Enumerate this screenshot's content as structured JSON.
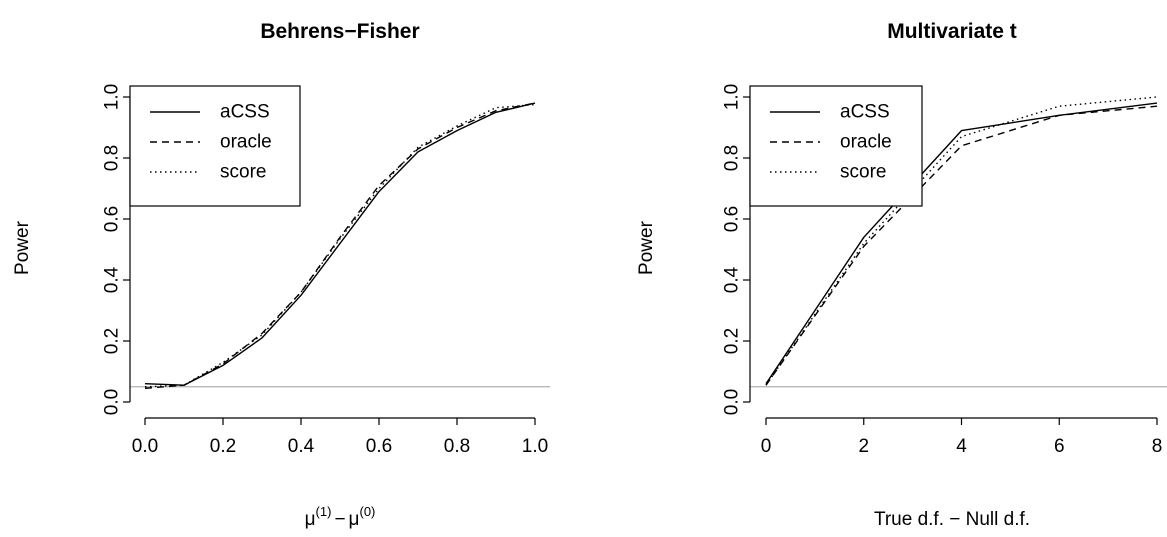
{
  "colors": {
    "series": "#000000",
    "reference": "#b0b0b0",
    "background": "#ffffff"
  },
  "chart_data": [
    {
      "type": "line",
      "title": "Behrens−Fisher",
      "xlabel": "μ⁽¹⁾ − μ⁽⁰⁾",
      "xlabel_parts": {
        "sym": "μ",
        "sup1": "(1)",
        "minus": "−",
        "sup0": "(0)"
      },
      "ylabel": "Power",
      "xlim": [
        0,
        1
      ],
      "ylim": [
        0,
        1
      ],
      "xticks": [
        0,
        0.2,
        0.4,
        0.6,
        0.8,
        1
      ],
      "xtick_labels": [
        "0.0",
        "0.2",
        "0.4",
        "0.6",
        "0.8",
        "1.0"
      ],
      "yticks": [
        0,
        0.2,
        0.4,
        0.6,
        0.8,
        1
      ],
      "ytick_labels": [
        "0.0",
        "0.2",
        "0.4",
        "0.6",
        "0.8",
        "1.0"
      ],
      "reference_line": {
        "y": 0.05
      },
      "legend": {
        "position": "top-left",
        "entries": [
          "aCSS",
          "oracle",
          "score"
        ]
      },
      "x": [
        0,
        0.1,
        0.2,
        0.3,
        0.4,
        0.5,
        0.6,
        0.7,
        0.8,
        0.9,
        1.0
      ],
      "series": [
        {
          "name": "aCSS",
          "style": "solid",
          "values": [
            0.06,
            0.055,
            0.12,
            0.21,
            0.35,
            0.52,
            0.69,
            0.82,
            0.89,
            0.95,
            0.98
          ]
        },
        {
          "name": "oracle",
          "style": "dashed",
          "values": [
            0.045,
            0.055,
            0.125,
            0.225,
            0.36,
            0.54,
            0.71,
            0.83,
            0.9,
            0.955,
            0.98
          ]
        },
        {
          "name": "score",
          "style": "dotted",
          "values": [
            0.05,
            0.055,
            0.13,
            0.22,
            0.36,
            0.535,
            0.7,
            0.835,
            0.905,
            0.965,
            0.975
          ]
        }
      ]
    },
    {
      "type": "line",
      "title": "Multivariate t",
      "xlabel": "True d.f. − Null d.f.",
      "ylabel": "Power",
      "xlim": [
        0,
        8
      ],
      "ylim": [
        0,
        1
      ],
      "xticks": [
        0,
        2,
        4,
        6,
        8
      ],
      "xtick_labels": [
        "0",
        "2",
        "4",
        "6",
        "8"
      ],
      "yticks": [
        0,
        0.2,
        0.4,
        0.6,
        0.8,
        1
      ],
      "ytick_labels": [
        "0.0",
        "0.2",
        "0.4",
        "0.6",
        "0.8",
        "1.0"
      ],
      "reference_line": {
        "y": 0.05
      },
      "legend": {
        "position": "top-left",
        "entries": [
          "aCSS",
          "oracle",
          "score"
        ]
      },
      "x": [
        0,
        2,
        4,
        6,
        8
      ],
      "series": [
        {
          "name": "aCSS",
          "style": "solid",
          "values": [
            0.06,
            0.54,
            0.89,
            0.94,
            0.98
          ]
        },
        {
          "name": "oracle",
          "style": "dashed",
          "values": [
            0.055,
            0.51,
            0.84,
            0.94,
            0.97
          ]
        },
        {
          "name": "score",
          "style": "dotted",
          "values": [
            0.055,
            0.52,
            0.87,
            0.97,
            1.0
          ]
        }
      ]
    }
  ]
}
